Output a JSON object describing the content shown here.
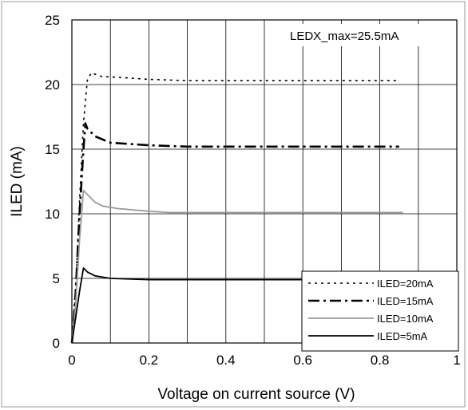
{
  "chart_data": {
    "type": "line",
    "title": "",
    "xlabel": "Voltage on current source (V)",
    "ylabel": "ILED (mA)",
    "xlim": [
      0,
      1
    ],
    "ylim": [
      0,
      25
    ],
    "x_ticks": [
      0,
      0.2,
      0.4,
      0.6,
      0.8,
      1
    ],
    "x_tick_labels": [
      "0",
      "0.2",
      "0.4",
      "0.6",
      "0.8",
      "1"
    ],
    "y_ticks": [
      0,
      5,
      10,
      15,
      20,
      25
    ],
    "y_tick_labels": [
      "0",
      "5",
      "10",
      "15",
      "20",
      "25"
    ],
    "x_minor_step": 0.1,
    "grid": true,
    "legend_position": "bottom-right",
    "annotation": "LEDX_max=25.5mA",
    "series": [
      {
        "name": "ILED=20mA",
        "style": "dotted",
        "color": "#000000",
        "x": [
          0,
          0.01,
          0.02,
          0.03,
          0.04,
          0.05,
          0.06,
          0.08,
          0.1,
          0.15,
          0.2,
          0.3,
          0.5,
          0.7,
          0.85
        ],
        "y": [
          0,
          4,
          11,
          17,
          20.3,
          20.9,
          20.8,
          20.6,
          20.6,
          20.5,
          20.4,
          20.3,
          20.3,
          20.3,
          20.3
        ]
      },
      {
        "name": "ILED=15mA",
        "style": "dashdot",
        "color": "#000000",
        "x": [
          0,
          0.01,
          0.02,
          0.03,
          0.035,
          0.04,
          0.06,
          0.1,
          0.2,
          0.3,
          0.5,
          0.7,
          0.85
        ],
        "y": [
          0,
          4,
          10,
          15,
          17,
          16.6,
          16.0,
          15.5,
          15.3,
          15.2,
          15.2,
          15.2,
          15.2
        ]
      },
      {
        "name": "ILED=10mA",
        "style": "solid",
        "color": "#9a9a9a",
        "x": [
          0,
          0.01,
          0.02,
          0.03,
          0.04,
          0.06,
          0.08,
          0.12,
          0.2,
          0.25,
          0.5,
          0.7,
          0.86
        ],
        "y": [
          0,
          3,
          8,
          11.8,
          11.5,
          10.9,
          10.6,
          10.4,
          10.2,
          10.1,
          10.1,
          10.1,
          10.1
        ]
      },
      {
        "name": "ILED=5mA",
        "style": "solid",
        "color": "#000000",
        "x": [
          0,
          0.01,
          0.02,
          0.03,
          0.04,
          0.06,
          0.1,
          0.2,
          0.3,
          0.5,
          0.7,
          0.86
        ],
        "y": [
          0,
          2,
          4,
          5.8,
          5.5,
          5.2,
          5.0,
          4.9,
          4.9,
          4.9,
          4.9,
          4.9
        ]
      }
    ]
  }
}
